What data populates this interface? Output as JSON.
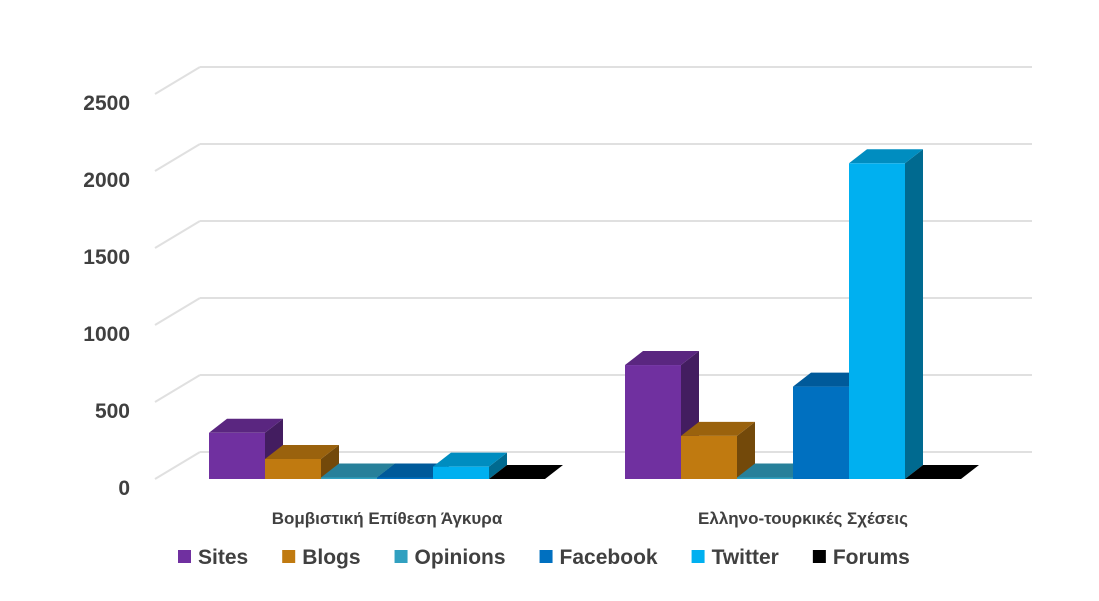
{
  "chart_data": {
    "type": "bar3d",
    "categories": [
      "Βομβιστική Επίθεση Άγκυρα",
      "Ελληνο-τουρκικές Σχέσεις"
    ],
    "series": [
      {
        "name": "Sites",
        "color": "#7030a0",
        "values": [
          300,
          740
        ]
      },
      {
        "name": "Blogs",
        "color": "#c07a10",
        "values": [
          130,
          280
        ]
      },
      {
        "name": "Opinions",
        "color": "#31a0c0",
        "values": [
          10,
          10
        ]
      },
      {
        "name": "Facebook",
        "color": "#0070c0",
        "values": [
          10,
          600
        ]
      },
      {
        "name": "Twitter",
        "color": "#00b0f0",
        "values": [
          80,
          2050
        ]
      },
      {
        "name": "Forums",
        "color": "#000000",
        "values": [
          0,
          0
        ]
      }
    ],
    "ylim": [
      0,
      2500
    ],
    "yticks": [
      0,
      500,
      1000,
      1500,
      2000,
      2500
    ],
    "grid": true
  }
}
